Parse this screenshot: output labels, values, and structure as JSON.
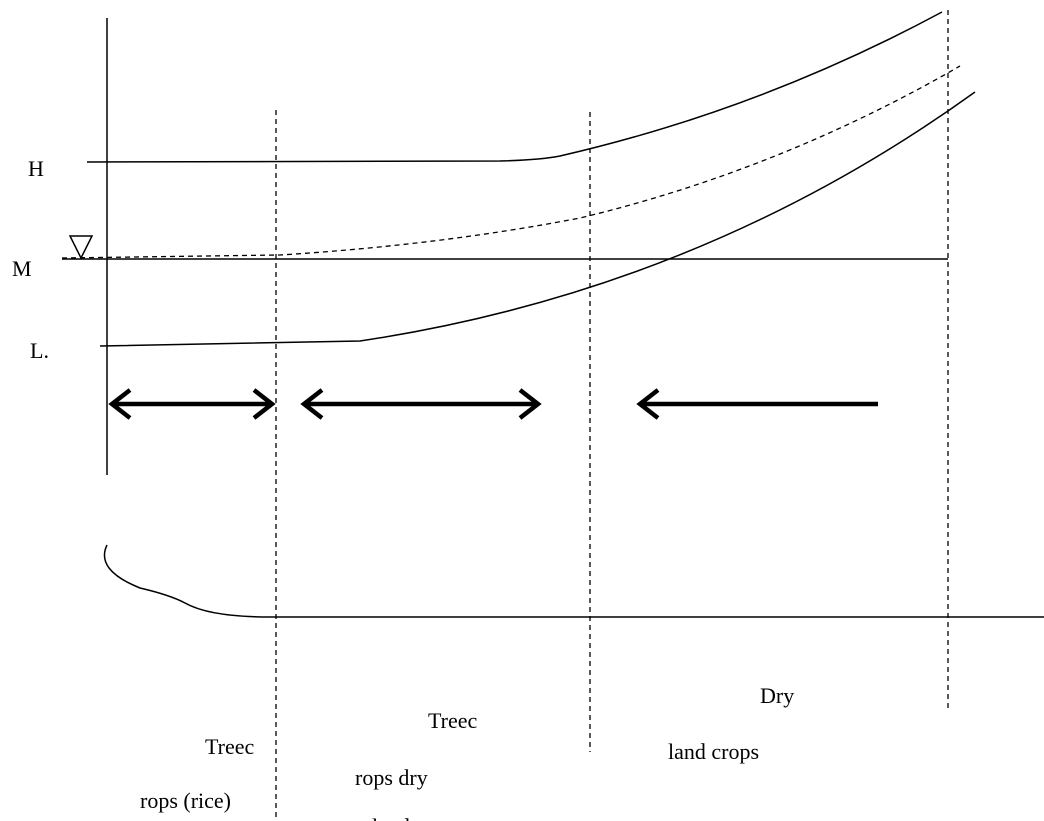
{
  "levels": {
    "high": "H",
    "middle": "M",
    "low": "L."
  },
  "zones": [
    {
      "lines": [
        "Treec",
        "rops (rice)"
      ]
    },
    {
      "lines": [
        "Treec",
        "rops dry",
        "land"
      ]
    },
    {
      "lines": [
        "Dry",
        "land crops"
      ]
    }
  ]
}
